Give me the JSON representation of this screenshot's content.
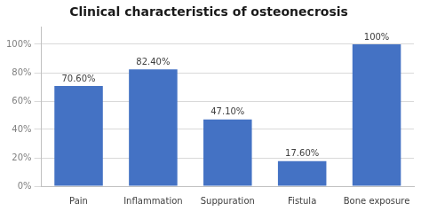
{
  "chart_data": {
    "type": "bar",
    "title": "Clinical characteristics of osteonecrosis",
    "categories": [
      "Pain",
      "Inflammation",
      "Suppuration",
      "Fistula",
      "Bone exposure"
    ],
    "values": [
      70.6,
      82.4,
      47.1,
      17.6,
      100.0
    ],
    "value_labels": [
      "70.60%",
      "82.40%",
      "47.10%",
      "17.60%",
      "100%"
    ],
    "data_labels": true,
    "color": "#4472C4",
    "ylim": [
      0,
      112
    ],
    "yticks": [
      {
        "value": 0,
        "label": "0%"
      },
      {
        "value": 20,
        "label": "20%"
      },
      {
        "value": 40,
        "label": "40%"
      },
      {
        "value": 60,
        "label": "60%"
      },
      {
        "value": 80,
        "label": "80%"
      },
      {
        "value": 100,
        "label": "100%"
      }
    ],
    "grid": true
  }
}
